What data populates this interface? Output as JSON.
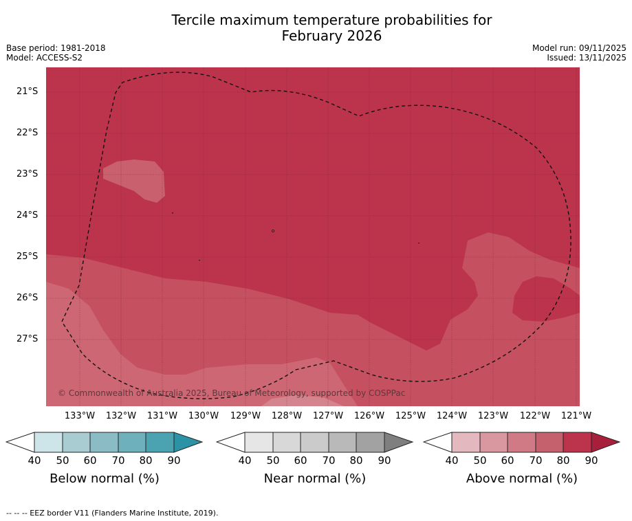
{
  "title_line1": "Tercile maximum temperature probabilities for",
  "title_line2": "February 2026",
  "base_period": "Base period: 1981-2018",
  "model": "Model: ACCESS-S2",
  "model_run": "Model run: 09/11/2025",
  "issued": "Issued: 13/11/2025",
  "lat_labels": [
    "21°S",
    "22°S",
    "23°S",
    "24°S",
    "25°S",
    "26°S",
    "27°S"
  ],
  "lon_labels": [
    "133°W",
    "132°W",
    "131°W",
    "130°W",
    "129°W",
    "128°W",
    "127°W",
    "126°W",
    "125°W",
    "124°W",
    "123°W",
    "122°W",
    "121°W"
  ],
  "copyright": "© Commonwealth of Australia 2025, Bureau of Meteorology, supported by COSPPac",
  "colorbars": [
    {
      "label": "Below normal (%)",
      "ticks": [
        "40",
        "50",
        "60",
        "70",
        "80",
        "90"
      ],
      "colors": [
        "#cde4e8",
        "#a9cbd2",
        "#8bbbc5",
        "#6fb0bd",
        "#4ba3b1",
        "#2c93a6"
      ]
    },
    {
      "label": "Near normal (%)",
      "ticks": [
        "40",
        "50",
        "60",
        "70",
        "80",
        "90"
      ],
      "colors": [
        "#e6e6e6",
        "#d8d8d8",
        "#cbcbcb",
        "#b9b9b9",
        "#a2a2a2",
        "#7f7f7f"
      ]
    },
    {
      "label": "Above normal (%)",
      "ticks": [
        "40",
        "50",
        "60",
        "70",
        "80",
        "90"
      ],
      "colors": [
        "#e3b9bf",
        "#d9979f",
        "#cf7a84",
        "#c5606d",
        "#bc334c",
        "#a81f3c"
      ]
    }
  ],
  "legend_note": "--  --  -- EEZ border V11 (Flanders Marine Institute, 2019).",
  "colors": {
    "above_80": "#bc334c",
    "above_70": "#c5505f",
    "above_60": "#cc6773",
    "above_50": "#d4848e"
  }
}
